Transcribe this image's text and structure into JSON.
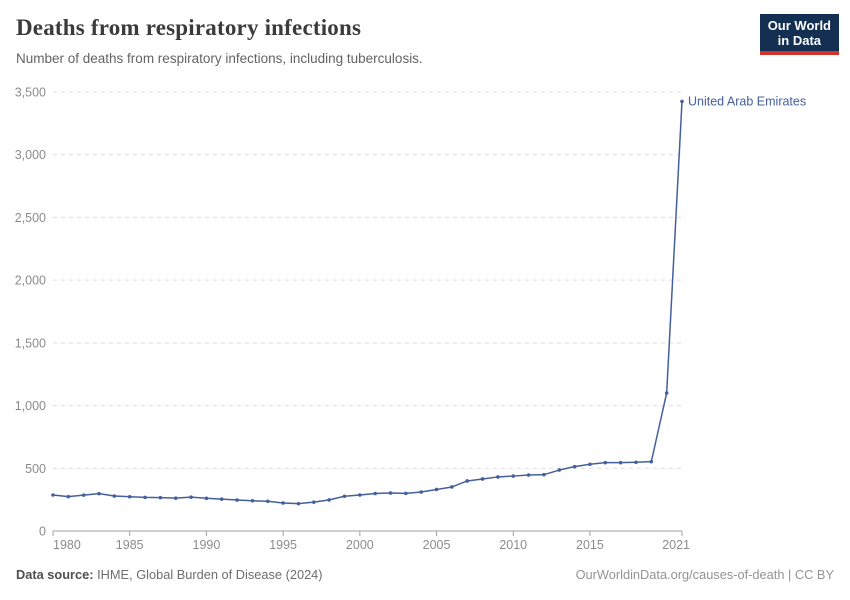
{
  "header": {
    "title": "Deaths from respiratory infections",
    "subtitle": "Number of deaths from respiratory infections, including tuberculosis.",
    "logo": {
      "line1": "Our World",
      "line2": "in Data"
    }
  },
  "chart_data": {
    "type": "line",
    "title": "Deaths from respiratory infections",
    "subtitle": "Number of deaths from respiratory infections, including tuberculosis.",
    "xlabel": "",
    "ylabel": "",
    "xlim": [
      1980,
      2021
    ],
    "ylim": [
      0,
      3500
    ],
    "grid": "horizontal-dashed",
    "legend": "inline-entity-label-right-of-last-point",
    "entity_label": "United Arab Emirates",
    "x": [
      1980,
      1981,
      1982,
      1983,
      1984,
      1985,
      1986,
      1987,
      1988,
      1989,
      1990,
      1991,
      1992,
      1993,
      1994,
      1995,
      1996,
      1997,
      1998,
      1999,
      2000,
      2001,
      2002,
      2003,
      2004,
      2005,
      2006,
      2007,
      2008,
      2009,
      2010,
      2011,
      2012,
      2013,
      2014,
      2015,
      2016,
      2017,
      2018,
      2019,
      2020,
      2021
    ],
    "series": [
      {
        "name": "United Arab Emirates",
        "color": "#44609c",
        "values": [
          287,
          274,
          286,
          298,
          279,
          273,
          268,
          266,
          262,
          270,
          261,
          254,
          247,
          241,
          237,
          223,
          218,
          230,
          248,
          277,
          287,
          299,
          303,
          300,
          311,
          331,
          351,
          399,
          415,
          431,
          438,
          446,
          449,
          486,
          513,
          532,
          545,
          545,
          548,
          553,
          1100,
          3425
        ]
      }
    ],
    "xticks": {
      "values": [
        1980,
        1985,
        1990,
        1995,
        2000,
        2005,
        2010,
        2015,
        2021
      ],
      "labels": [
        "1980",
        "1985",
        "1990",
        "1995",
        "2000",
        "2005",
        "2010",
        "2015",
        "2021"
      ]
    },
    "yticks": {
      "values": [
        0,
        500,
        1000,
        1500,
        2000,
        2500,
        3000,
        3500
      ],
      "labels": [
        "0",
        "500",
        "1,000",
        "1,500",
        "2,000",
        "2,500",
        "3,000",
        "3,500"
      ]
    }
  },
  "footer": {
    "source_label": "Data source:",
    "source_value": " IHME, Global Burden of Disease (2024)",
    "link": "OurWorldinData.org/causes-of-death | CC BY"
  },
  "colors": {
    "line": "#44609c",
    "logo_navy": "#132f52",
    "logo_red": "#d0342c",
    "grid": "#dcdcdc",
    "axis": "#a1a1a1",
    "tick_label": "#8c8c8c",
    "title_text": "#3b3b3b",
    "subtitle_text": "#636363",
    "footer_text": "#6e6e6e",
    "footer_link_text": "#949494"
  }
}
